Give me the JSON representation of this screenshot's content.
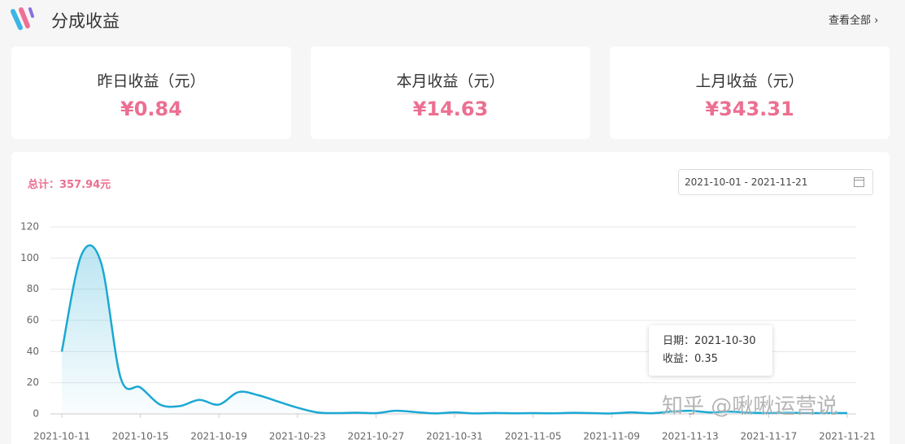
{
  "header": {
    "title": "分成收益",
    "link": "查看全部"
  },
  "cards": [
    {
      "label": "昨日收益（元）",
      "amount": "¥0.84"
    },
    {
      "label": "本月收益（元）",
      "amount": "¥14.63"
    },
    {
      "label": "上月收益（元）",
      "amount": "¥343.31"
    }
  ],
  "panel": {
    "total": "总计：357.94元",
    "date_range": "2021-10-01 - 2021-11-21"
  },
  "tooltip": {
    "lines": [
      "日期：2021-10-30",
      "收益：0.35"
    ]
  },
  "watermark": "知乎 @啾啾运营说",
  "chart_data": {
    "type": "line",
    "categories": [
      "2021-10-11",
      null,
      null,
      null,
      "2021-10-15",
      null,
      null,
      null,
      "2021-10-19",
      null,
      null,
      null,
      "2021-10-23",
      null,
      null,
      null,
      "2021-10-27",
      null,
      null,
      null,
      "2021-10-31",
      null,
      null,
      null,
      "2021-11-05",
      null,
      null,
      null,
      "2021-11-09",
      null,
      null,
      null,
      "2021-11-13",
      null,
      null,
      null,
      "2021-11-17",
      null,
      null,
      null,
      "2021-11-21"
    ],
    "series": [
      {
        "color": "#1ba8d3",
        "values": [
          40,
          102,
          97,
          23,
          17,
          6,
          5,
          9,
          6,
          14,
          12,
          8,
          4,
          1,
          0.5,
          0.8,
          0.5,
          2,
          1.2,
          0.35,
          1,
          0.3,
          0.6,
          0.4,
          0.5,
          0.4,
          0.7,
          0.5,
          0.3,
          1,
          0.4,
          1.5,
          2,
          1,
          1.5,
          0.8,
          0.6,
          0.8,
          0.5,
          0.6,
          0.5
        ]
      }
    ],
    "ylim": [
      0,
      120
    ],
    "yticks": [
      0,
      20,
      40,
      60,
      80,
      100,
      120
    ],
    "grid": true
  }
}
